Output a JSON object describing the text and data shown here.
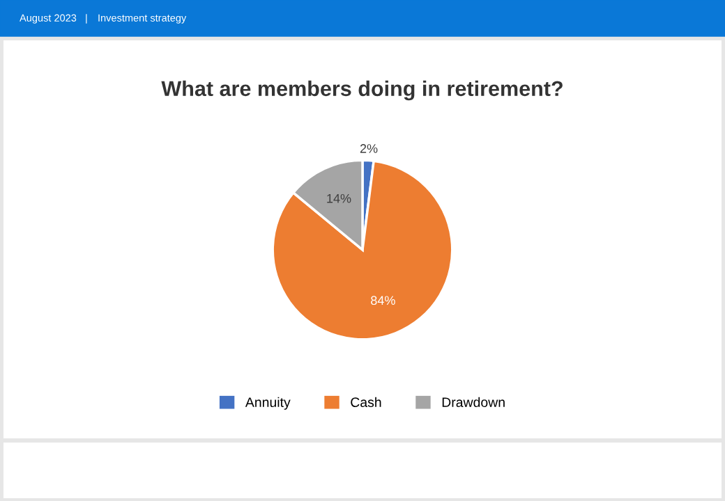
{
  "chart_data": {
    "type": "pie",
    "title": "What are members doing in retirement?",
    "categories": [
      "Annuity",
      "Cash",
      "Drawdown"
    ],
    "values": [
      2,
      84,
      14
    ],
    "colors": [
      "#4472c4",
      "#ed7d31",
      "#a5a5a5"
    ],
    "value_labels": [
      "2%",
      "84%",
      "14%"
    ],
    "legend": "bottom",
    "annotations": [
      "August 2023",
      "|",
      "Investment strategy"
    ]
  }
}
